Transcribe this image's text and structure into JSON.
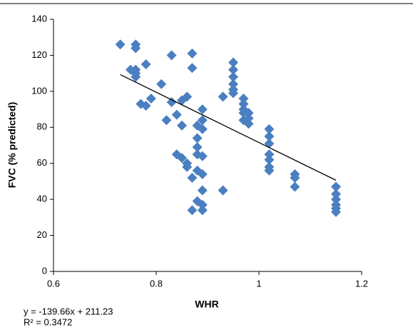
{
  "chart_data": {
    "type": "scatter",
    "x_label": "WHR",
    "y_label": "FVC (% predicted)",
    "color": "#4a7fc1",
    "x": [
      0.73,
      0.76,
      0.76,
      0.75,
      0.76,
      0.76,
      0.76,
      0.78,
      0.81,
      0.83,
      0.87,
      0.87,
      0.77,
      0.78,
      0.79,
      0.82,
      0.83,
      0.84,
      0.85,
      0.85,
      0.86,
      0.89,
      0.88,
      0.89,
      0.89,
      0.88,
      0.88,
      0.88,
      0.89,
      0.84,
      0.85,
      0.86,
      0.86,
      0.87,
      0.88,
      0.89,
      0.89,
      0.88,
      0.89,
      0.87,
      0.89,
      0.93,
      0.93,
      0.95,
      0.95,
      0.95,
      0.95,
      0.95,
      0.95,
      0.97,
      0.97,
      0.97,
      0.97,
      0.97,
      0.98,
      0.98,
      0.98,
      1.02,
      1.02,
      1.02,
      1.02,
      1.02,
      1.02,
      1.02,
      1.07,
      1.07,
      1.07,
      1.15,
      1.15,
      1.15,
      1.15,
      1.15,
      1.15
    ],
    "y": [
      126,
      126,
      124,
      112,
      112,
      110,
      108,
      115,
      104,
      120,
      121,
      113,
      93,
      92,
      96,
      84,
      94,
      87,
      81,
      95,
      97,
      90,
      81,
      84,
      79,
      74,
      69,
      65,
      64,
      65,
      63,
      60,
      58,
      52,
      56,
      54,
      45,
      39,
      37,
      34,
      34,
      45,
      97,
      116,
      112,
      108,
      104,
      101,
      99,
      96,
      93,
      90,
      88,
      84,
      85,
      88,
      82,
      79,
      75,
      71,
      65,
      62,
      58,
      56,
      54,
      52,
      47,
      47,
      43,
      40,
      37,
      35,
      33
    ],
    "xlim": [
      0.6,
      1.2
    ],
    "xticks": [
      0.6,
      0.8,
      1,
      1.2
    ],
    "ylim": [
      0,
      140
    ],
    "yticks": [
      0,
      20,
      40,
      60,
      80,
      100,
      120,
      140
    ],
    "trendline": {
      "equation": "y = -139.66x + 211.23",
      "r2_label": "R² = 0.3472",
      "slope": -139.66,
      "intercept": 211.23,
      "color": "#000000"
    }
  }
}
